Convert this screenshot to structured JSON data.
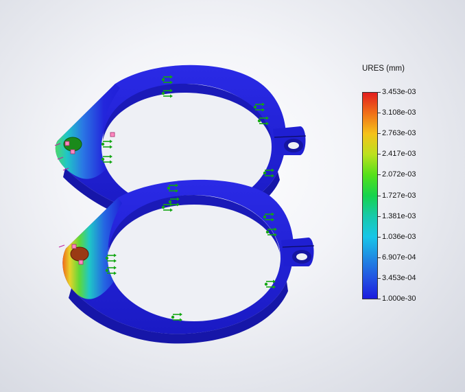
{
  "legend": {
    "title": "URES (mm)",
    "ticks": [
      "3.453e-03",
      "3.108e-03",
      "2.763e-03",
      "2.417e-03",
      "2.072e-03",
      "1.727e-03",
      "1.381e-03",
      "1.036e-03",
      "6.907e-04",
      "3.453e-04",
      "1.000e-30"
    ]
  },
  "colors": {
    "part_base": "#2020d8",
    "part_shadow": "#12129a",
    "fixture_arrow": "#13a613",
    "load_marker": "#ff88c0",
    "background": "#f3f4f8"
  },
  "icons": {
    "fixture": "fixture-arrow-icon",
    "load": "load-marker-icon"
  }
}
